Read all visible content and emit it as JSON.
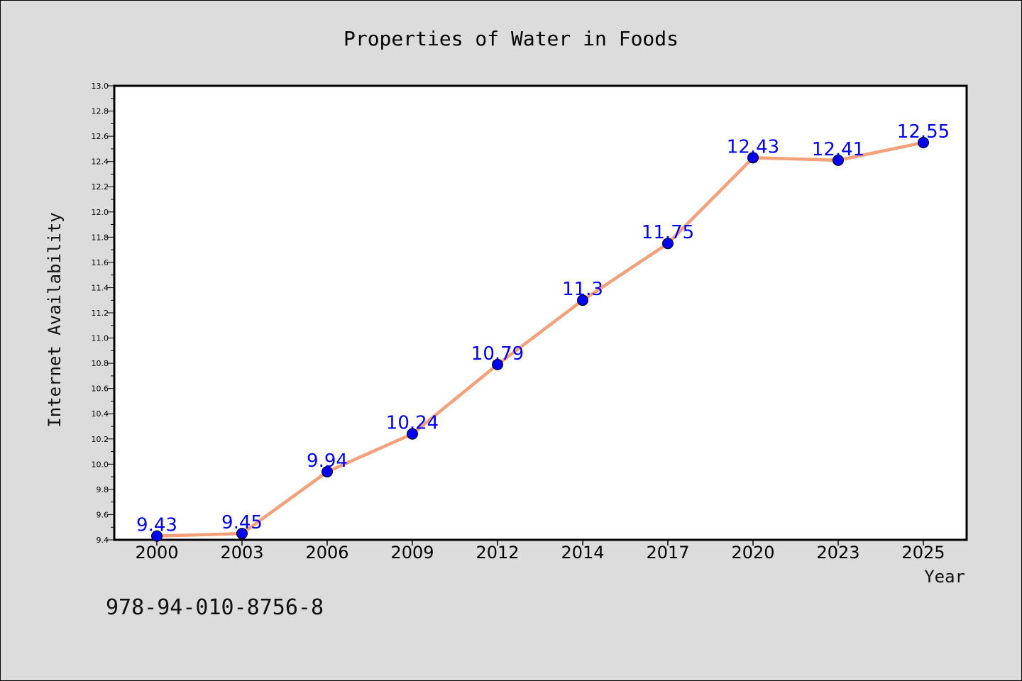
{
  "chart_data": {
    "type": "line",
    "title": "Properties of Water in Foods",
    "xlabel": "Year",
    "ylabel": "Internet Availability",
    "categories": [
      "2000",
      "2003",
      "2006",
      "2009",
      "2012",
      "2014",
      "2017",
      "2020",
      "2023",
      "2025"
    ],
    "values": [
      9.43,
      9.45,
      9.94,
      10.24,
      10.79,
      11.3,
      11.75,
      12.43,
      12.41,
      12.55
    ],
    "data_labels": [
      "9.43",
      "9.45",
      "9.94",
      "10.24",
      "10.79",
      "11.3",
      "11.75",
      "12.43",
      "12.41",
      "12.55"
    ],
    "ylim": [
      9.4,
      13.0
    ],
    "yticks": [
      "9.4",
      "9.6",
      "9.8",
      "10.0",
      "10.2",
      "10.4",
      "10.6",
      "10.8",
      "11.0",
      "11.2",
      "11.4",
      "11.6",
      "11.8",
      "12.0",
      "12.2",
      "12.4",
      "12.6",
      "12.8",
      "13.0"
    ],
    "grid": false,
    "line_color": "#f4a07a",
    "marker_color": "#0000ee",
    "label_color": "#0000ff",
    "background": "#dcdcdc",
    "plot_background": "#ffffff"
  },
  "annotation": "978-94-010-8756-8"
}
